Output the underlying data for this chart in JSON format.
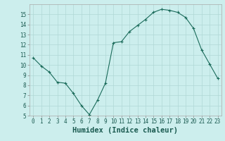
{
  "x": [
    0,
    1,
    2,
    3,
    4,
    5,
    6,
    7,
    8,
    9,
    10,
    11,
    12,
    13,
    14,
    15,
    16,
    17,
    18,
    19,
    20,
    21,
    22,
    23
  ],
  "y": [
    10.7,
    9.9,
    9.3,
    8.3,
    8.2,
    7.2,
    6.0,
    5.1,
    6.5,
    8.2,
    12.2,
    12.3,
    13.3,
    13.9,
    14.5,
    15.2,
    15.5,
    15.4,
    15.2,
    14.7,
    13.6,
    11.5,
    10.1,
    8.7
  ],
  "xlim": [
    -0.5,
    23.5
  ],
  "ylim": [
    5,
    16
  ],
  "xticks": [
    0,
    1,
    2,
    3,
    4,
    5,
    6,
    7,
    8,
    9,
    10,
    11,
    12,
    13,
    14,
    15,
    16,
    17,
    18,
    19,
    20,
    21,
    22,
    23
  ],
  "yticks": [
    5,
    6,
    7,
    8,
    9,
    10,
    11,
    12,
    13,
    14,
    15
  ],
  "xlabel": "Humidex (Indice chaleur)",
  "line_color": "#1a6b5a",
  "bg_color": "#cceeed",
  "grid_color": "#b0d8d5",
  "tick_label_fontsize": 5.5,
  "xlabel_fontsize": 7.5,
  "marker": "+"
}
